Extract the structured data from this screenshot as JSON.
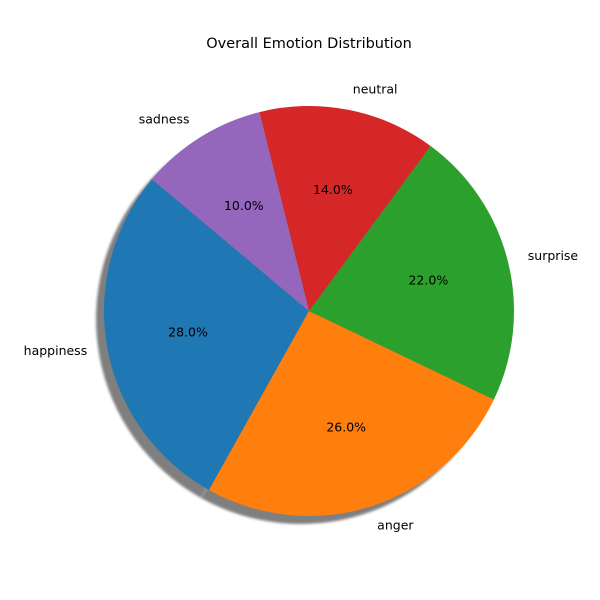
{
  "chart_data": {
    "type": "pie",
    "title": "Overall Emotion Distribution",
    "start_angle_deg": 140,
    "direction": "counterclockwise",
    "shadow": true,
    "slices": [
      {
        "label": "happiness",
        "value": 28.0,
        "pct_text": "28.0%",
        "color": "#1f77b4"
      },
      {
        "label": "anger",
        "value": 26.0,
        "pct_text": "26.0%",
        "color": "#ff7f0e"
      },
      {
        "label": "surprise",
        "value": 22.0,
        "pct_text": "22.0%",
        "color": "#2ca02c"
      },
      {
        "label": "neutral",
        "value": 14.0,
        "pct_text": "14.0%",
        "color": "#d62728"
      },
      {
        "label": "sadness",
        "value": 10.0,
        "pct_text": "10.0%",
        "color": "#9467bd"
      }
    ]
  }
}
